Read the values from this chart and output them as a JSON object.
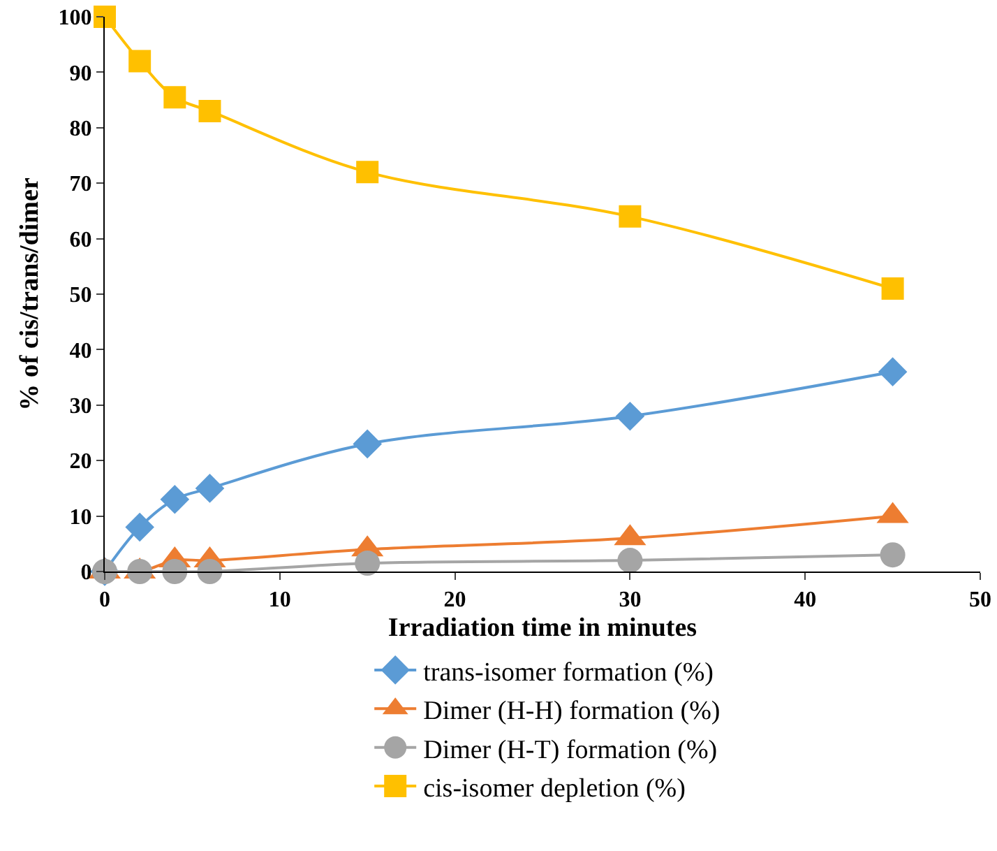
{
  "chart_data": {
    "type": "line",
    "xlabel": "Irradiation time in minutes",
    "ylabel": "% of cis/trans/dimer",
    "x": [
      0,
      2,
      4,
      6,
      15,
      30,
      45
    ],
    "series": [
      {
        "name": "trans-isomer formation (%)",
        "color": "#5b9bd5",
        "marker": "diamond",
        "values": [
          0,
          8,
          13,
          15,
          23,
          28,
          36
        ]
      },
      {
        "name": "Dimer (H-H) formation (%)",
        "color": "#ed7d31",
        "marker": "triangle",
        "values": [
          0,
          0,
          2,
          2,
          4,
          6,
          10
        ]
      },
      {
        "name": "Dimer (H-T) formation (%)",
        "color": "#a5a5a5",
        "marker": "circle",
        "values": [
          0,
          0,
          0,
          0,
          1.5,
          2,
          3
        ]
      },
      {
        "name": "cis-isomer depletion (%)",
        "color": "#ffc000",
        "marker": "square",
        "values": [
          100,
          92,
          85.5,
          83,
          72,
          64,
          51
        ]
      }
    ],
    "xlim": [
      0,
      50
    ],
    "xticks": [
      0,
      10,
      20,
      30,
      40,
      50
    ],
    "ylim": [
      0,
      100
    ],
    "yticks": [
      0,
      10,
      20,
      30,
      40,
      50,
      60,
      70,
      80,
      90,
      100
    ],
    "grid": false,
    "legend": "bottom",
    "line_style": "solid"
  }
}
